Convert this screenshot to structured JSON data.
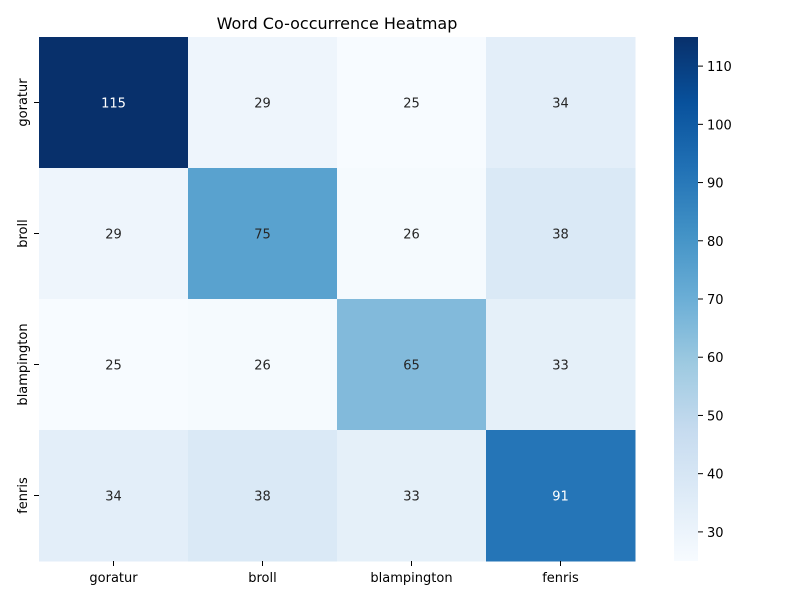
{
  "chart_data": {
    "type": "heatmap",
    "title": "Word Co-occurrence Heatmap",
    "x_categories": [
      "goratur",
      "broll",
      "blampington",
      "fenris"
    ],
    "y_categories": [
      "goratur",
      "broll",
      "blampington",
      "fenris"
    ],
    "values": [
      [
        115,
        29,
        25,
        34
      ],
      [
        29,
        75,
        26,
        38
      ],
      [
        25,
        26,
        65,
        33
      ],
      [
        34,
        38,
        33,
        91
      ]
    ],
    "colorbar": {
      "min": 25,
      "max": 115,
      "ticks": [
        30,
        40,
        50,
        60,
        70,
        80,
        90,
        100,
        110
      ]
    },
    "colormap": "Blues",
    "colors": {
      "low": "#f7fbff",
      "high": "#08306b",
      "light_text": "#ffffff",
      "dark_text": "#262626"
    }
  }
}
